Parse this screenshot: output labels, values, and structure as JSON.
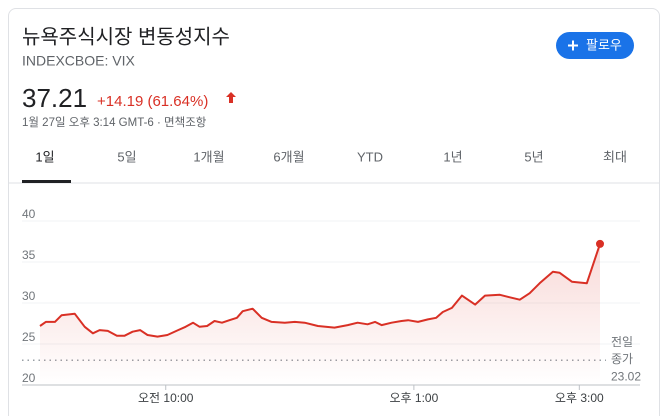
{
  "header": {
    "title": "뉴욕주식시장 변동성지수",
    "ticker": "INDEXCBOE: VIX"
  },
  "button": {
    "label": "팔로우"
  },
  "quote": {
    "price": "37.21",
    "change": "+14.19 (61.64%)",
    "timestamp": "1월 27일 오후 3:14 GMT-6 · 면책조항"
  },
  "tabs": [
    "1일",
    "5일",
    "1개월",
    "6개월",
    "YTD",
    "1년",
    "5년",
    "최대"
  ],
  "chart_data": {
    "type": "line",
    "color": "#d93025",
    "x": [
      8.48,
      8.55,
      8.66,
      8.74,
      8.9,
      9.02,
      9.12,
      9.2,
      9.3,
      9.41,
      9.5,
      9.6,
      9.69,
      9.78,
      9.9,
      10.02,
      10.15,
      10.24,
      10.33,
      10.41,
      10.5,
      10.59,
      10.68,
      10.77,
      10.86,
      10.93,
      11.05,
      11.16,
      11.28,
      11.44,
      11.56,
      11.68,
      11.84,
      12.04,
      12.2,
      12.32,
      12.44,
      12.53,
      12.61,
      12.73,
      12.85,
      12.93,
      13.05,
      13.17,
      13.27,
      13.35,
      13.46,
      13.58,
      13.74,
      13.86,
      14.04,
      14.16,
      14.28,
      14.4,
      14.52,
      14.68,
      14.76,
      14.91,
      15.09,
      15.25
    ],
    "values": [
      27.2,
      27.7,
      27.7,
      28.5,
      28.7,
      27.1,
      26.3,
      26.7,
      26.6,
      26.0,
      26.0,
      26.5,
      26.7,
      26.1,
      25.9,
      26.1,
      26.7,
      27.1,
      27.6,
      27.1,
      27.2,
      27.8,
      27.6,
      27.9,
      28.2,
      29.0,
      29.3,
      28.2,
      27.7,
      27.6,
      27.7,
      27.6,
      27.2,
      27.0,
      27.3,
      27.6,
      27.4,
      27.7,
      27.3,
      27.6,
      27.8,
      27.9,
      27.7,
      28.0,
      28.2,
      28.9,
      29.4,
      30.9,
      29.8,
      30.9,
      31.0,
      30.7,
      30.4,
      31.2,
      32.4,
      33.8,
      33.7,
      32.6,
      32.4,
      37.21
    ],
    "xlim": [
      8.48,
      15.25
    ],
    "xticks": [
      {
        "value": 10,
        "label": "오전 10:00"
      },
      {
        "value": 13,
        "label": "오후 1:00"
      },
      {
        "value": 15,
        "label": "오후 3:00"
      }
    ],
    "ylim": [
      20,
      42.5
    ],
    "yticks": [
      20,
      25,
      30,
      35,
      40
    ],
    "grid": true,
    "prior_close_label": "전일 종가",
    "prior_close": 23.02
  }
}
